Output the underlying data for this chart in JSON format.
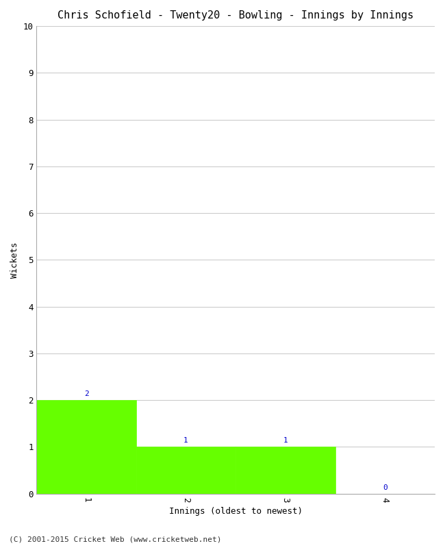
{
  "title": "Chris Schofield - Twenty20 - Bowling - Innings by Innings",
  "xlabel": "Innings (oldest to newest)",
  "ylabel": "Wickets",
  "categories": [
    1,
    2,
    3,
    4
  ],
  "values": [
    2,
    1,
    1,
    0
  ],
  "bar_color": "#66ff00",
  "bar_edge_color": "#66ff00",
  "label_color": "#0000cc",
  "ylim": [
    0,
    10
  ],
  "yticks": [
    0,
    1,
    2,
    3,
    4,
    5,
    6,
    7,
    8,
    9,
    10
  ],
  "xticks": [
    1,
    2,
    3,
    4
  ],
  "background_color": "#ffffff",
  "grid_color": "#cccccc",
  "footer": "(C) 2001-2015 Cricket Web (www.cricketweb.net)",
  "title_fontsize": 11,
  "axis_label_fontsize": 9,
  "tick_fontsize": 9,
  "footer_fontsize": 8,
  "annotation_fontsize": 8,
  "font_family": "monospace"
}
